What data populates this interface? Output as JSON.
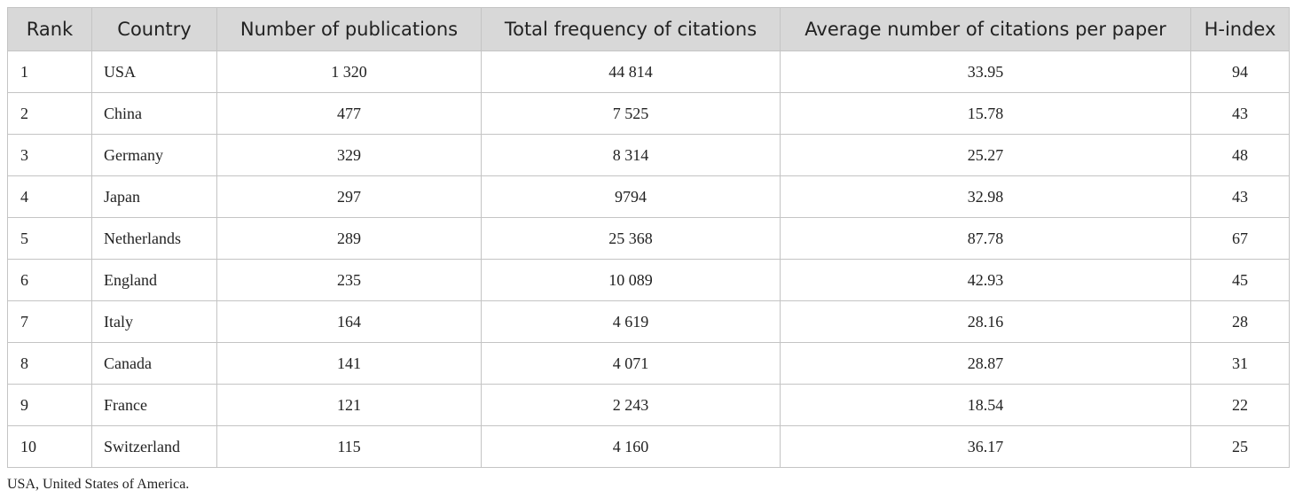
{
  "table": {
    "header": [
      "Rank",
      "Country",
      "Number of publications",
      "Total frequency of citations",
      "Average number of citations per paper",
      "H-index"
    ],
    "rows": [
      [
        "1",
        "USA",
        "1 320",
        "44 814",
        "33.95",
        "94"
      ],
      [
        "2",
        "China",
        "477",
        "7 525",
        "15.78",
        "43"
      ],
      [
        "3",
        "Germany",
        "329",
        "8 314",
        "25.27",
        "48"
      ],
      [
        "4",
        "Japan",
        "297",
        "9794",
        "32.98",
        "43"
      ],
      [
        "5",
        "Netherlands",
        "289",
        "25 368",
        "87.78",
        "67"
      ],
      [
        "6",
        "England",
        "235",
        "10 089",
        "42.93",
        "45"
      ],
      [
        "7",
        "Italy",
        "164",
        "4 619",
        "28.16",
        "28"
      ],
      [
        "8",
        "Canada",
        "141",
        "4 071",
        "28.87",
        "31"
      ],
      [
        "9",
        "France",
        "121",
        "2 243",
        "18.54",
        "22"
      ],
      [
        "10",
        "Switzerland",
        "115",
        "4 160",
        "36.17",
        "25"
      ]
    ],
    "footnote": "USA, United States of America."
  }
}
